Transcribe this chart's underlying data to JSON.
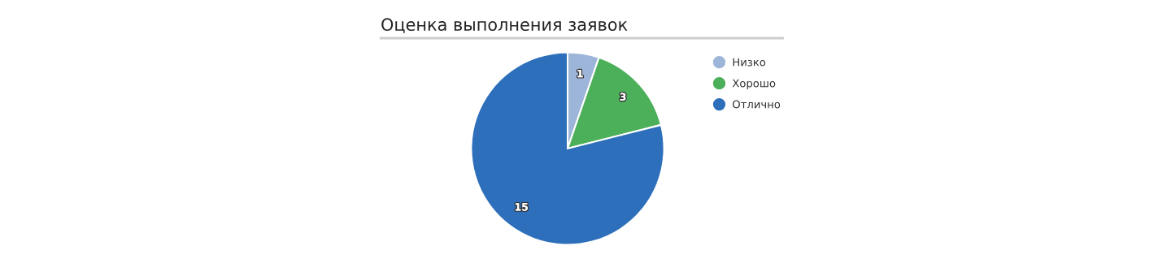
{
  "chart_data": {
    "type": "pie",
    "title": "Оценка выполнения заявок",
    "categories": [
      "Низко",
      "Хорошо",
      "Отлично"
    ],
    "values": [
      1,
      3,
      15
    ],
    "colors": [
      "#9db5d8",
      "#4caf5a",
      "#2d6fba"
    ],
    "data_labels": true,
    "legend": "right"
  }
}
